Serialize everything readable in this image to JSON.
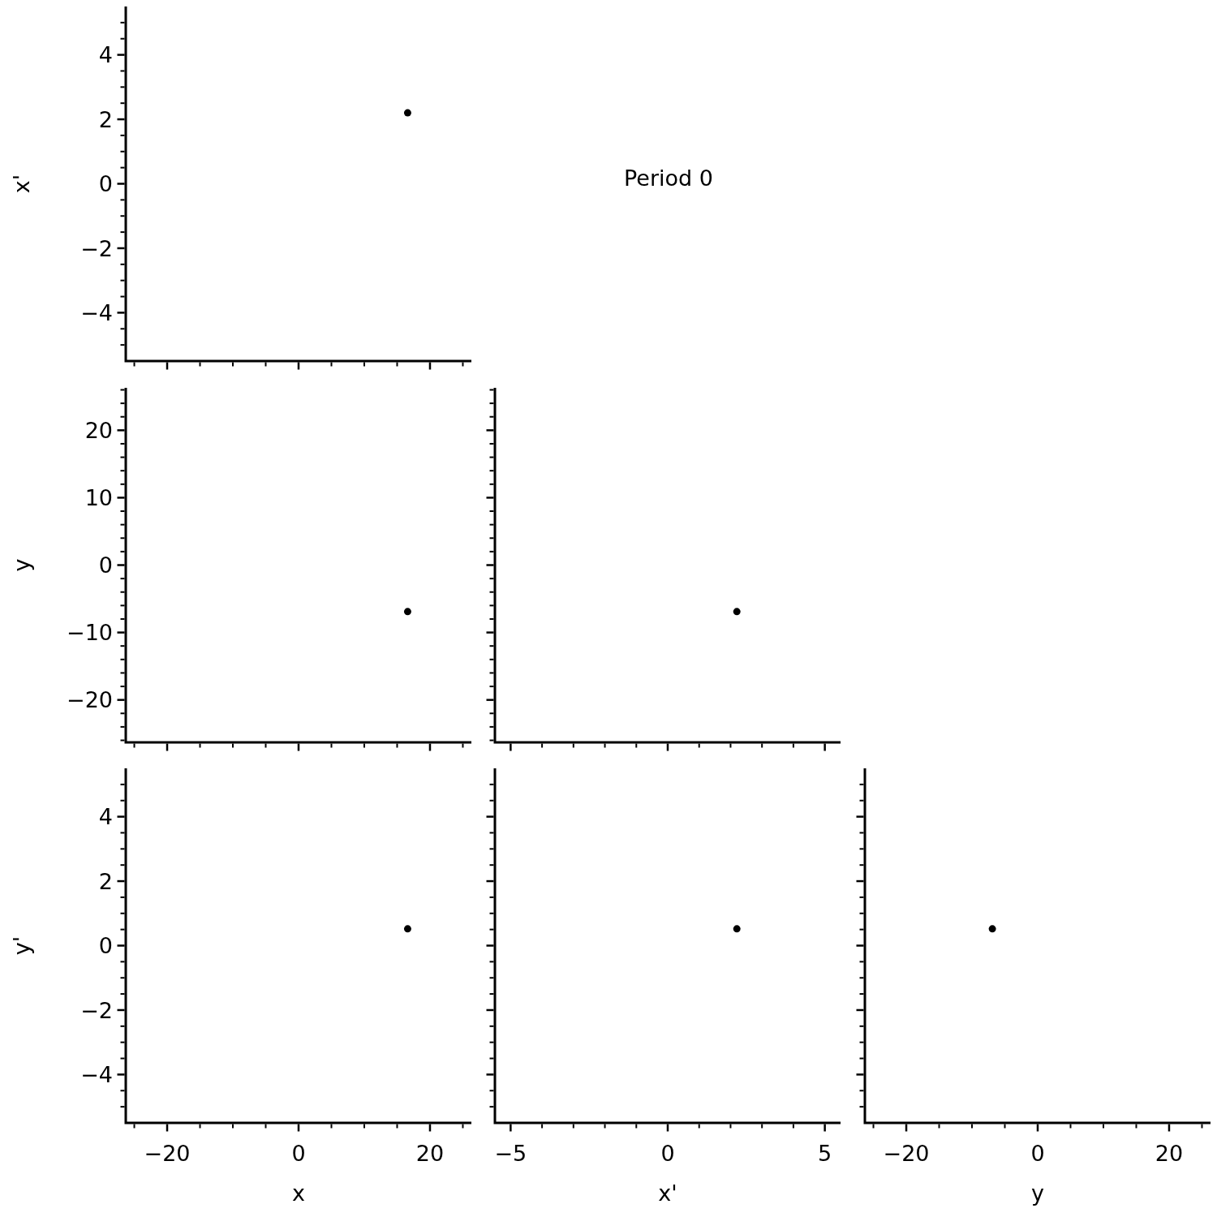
{
  "chart_data": [
    {
      "type": "scatter",
      "x": [
        16.6
      ],
      "values": [
        2.2
      ],
      "color": "#000000",
      "marker": "circle",
      "ylabel": "x'",
      "tick_labels": "y",
      "xlim": [
        -26.3,
        26.3
      ],
      "ylim": [
        -5.5,
        5.5
      ],
      "xticks": [
        {
          "value": -25,
          "label": null
        },
        -20,
        {
          "value": -15,
          "label": null
        },
        {
          "value": -10,
          "label": null
        },
        {
          "value": -5,
          "label": null
        },
        0,
        {
          "value": 5,
          "label": null
        },
        {
          "value": 10,
          "label": null
        },
        {
          "value": 15,
          "label": null
        },
        20,
        {
          "value": 25,
          "label": null
        }
      ],
      "yticks": [
        {
          "value": -5,
          "label": null
        },
        {
          "value": -4.5,
          "label": null
        },
        -4,
        {
          "value": -3.5,
          "label": null
        },
        {
          "value": -3,
          "label": null
        },
        {
          "value": -2.5,
          "label": null
        },
        -2,
        {
          "value": -1.5,
          "label": null
        },
        {
          "value": -1,
          "label": null
        },
        {
          "value": -0.5,
          "label": null
        },
        0,
        {
          "value": 0.5,
          "label": null
        },
        {
          "value": 1,
          "label": null
        },
        {
          "value": 1.5,
          "label": null
        },
        2,
        {
          "value": 2.5,
          "label": null
        },
        {
          "value": 3,
          "label": null
        },
        {
          "value": 3.5,
          "label": null
        },
        4,
        {
          "value": 4.5,
          "label": null
        },
        {
          "value": 5,
          "label": null
        }
      ]
    },
    {
      "type": "other",
      "title": "Period 0"
    },
    {
      "type": "scatter",
      "x": [
        16.6
      ],
      "values": [
        -6.9
      ],
      "color": "#000000",
      "marker": "circle",
      "ylabel": "y",
      "tick_labels": "y",
      "xlim": [
        -26.3,
        26.3
      ],
      "ylim": [
        -26.3,
        26.3
      ],
      "xticks": [
        {
          "value": -25,
          "label": null
        },
        -20,
        {
          "value": -15,
          "label": null
        },
        {
          "value": -10,
          "label": null
        },
        {
          "value": -5,
          "label": null
        },
        0,
        {
          "value": 5,
          "label": null
        },
        {
          "value": 10,
          "label": null
        },
        {
          "value": 15,
          "label": null
        },
        20,
        {
          "value": 25,
          "label": null
        }
      ],
      "yticks": [
        {
          "value": -26,
          "label": null
        },
        {
          "value": -24,
          "label": null
        },
        {
          "value": -22,
          "label": null
        },
        -20,
        {
          "value": -18,
          "label": null
        },
        {
          "value": -16,
          "label": null
        },
        {
          "value": -14,
          "label": null
        },
        {
          "value": -12,
          "label": null
        },
        -10,
        {
          "value": -8,
          "label": null
        },
        {
          "value": -6,
          "label": null
        },
        {
          "value": -4,
          "label": null
        },
        {
          "value": -2,
          "label": null
        },
        0,
        {
          "value": 2,
          "label": null
        },
        {
          "value": 4,
          "label": null
        },
        {
          "value": 6,
          "label": null
        },
        {
          "value": 8,
          "label": null
        },
        10,
        {
          "value": 12,
          "label": null
        },
        {
          "value": 14,
          "label": null
        },
        {
          "value": 16,
          "label": null
        },
        {
          "value": 18,
          "label": null
        },
        20,
        {
          "value": 22,
          "label": null
        },
        {
          "value": 24,
          "label": null
        },
        {
          "value": 26,
          "label": null
        }
      ]
    },
    {
      "type": "scatter",
      "x": [
        2.2
      ],
      "values": [
        -6.9
      ],
      "color": "#000000",
      "marker": "circle",
      "tick_labels": false,
      "xlim": [
        -5.5,
        5.5
      ],
      "ylim": [
        -26.3,
        26.3
      ],
      "xticks": [
        -5,
        {
          "value": -4,
          "label": null
        },
        {
          "value": -3,
          "label": null
        },
        {
          "value": -2,
          "label": null
        },
        {
          "value": -1,
          "label": null
        },
        0,
        {
          "value": 1,
          "label": null
        },
        {
          "value": 2,
          "label": null
        },
        {
          "value": 3,
          "label": null
        },
        {
          "value": 4,
          "label": null
        },
        5
      ],
      "yticks": [
        {
          "value": -26,
          "label": null
        },
        {
          "value": -24,
          "label": null
        },
        {
          "value": -22,
          "label": null
        },
        -20,
        {
          "value": -18,
          "label": null
        },
        {
          "value": -16,
          "label": null
        },
        {
          "value": -14,
          "label": null
        },
        {
          "value": -12,
          "label": null
        },
        -10,
        {
          "value": -8,
          "label": null
        },
        {
          "value": -6,
          "label": null
        },
        {
          "value": -4,
          "label": null
        },
        {
          "value": -2,
          "label": null
        },
        0,
        {
          "value": 2,
          "label": null
        },
        {
          "value": 4,
          "label": null
        },
        {
          "value": 6,
          "label": null
        },
        {
          "value": 8,
          "label": null
        },
        10,
        {
          "value": 12,
          "label": null
        },
        {
          "value": 14,
          "label": null
        },
        {
          "value": 16,
          "label": null
        },
        {
          "value": 18,
          "label": null
        },
        20,
        {
          "value": 22,
          "label": null
        },
        {
          "value": 24,
          "label": null
        },
        {
          "value": 26,
          "label": null
        }
      ]
    },
    {
      "type": "scatter",
      "x": [
        16.6
      ],
      "values": [
        0.52
      ],
      "color": "#000000",
      "marker": "circle",
      "xlabel": "x",
      "ylabel": "y'",
      "xlim": [
        -26.3,
        26.3
      ],
      "ylim": [
        -5.5,
        5.5
      ],
      "xticks": [
        {
          "value": -25,
          "label": null
        },
        -20,
        {
          "value": -15,
          "label": null
        },
        {
          "value": -10,
          "label": null
        },
        {
          "value": -5,
          "label": null
        },
        0,
        {
          "value": 5,
          "label": null
        },
        {
          "value": 10,
          "label": null
        },
        {
          "value": 15,
          "label": null
        },
        20,
        {
          "value": 25,
          "label": null
        }
      ],
      "yticks": [
        {
          "value": -5,
          "label": null
        },
        {
          "value": -4.5,
          "label": null
        },
        -4,
        {
          "value": -3.5,
          "label": null
        },
        {
          "value": -3,
          "label": null
        },
        {
          "value": -2.5,
          "label": null
        },
        -2,
        {
          "value": -1.5,
          "label": null
        },
        {
          "value": -1,
          "label": null
        },
        {
          "value": -0.5,
          "label": null
        },
        0,
        {
          "value": 0.5,
          "label": null
        },
        {
          "value": 1,
          "label": null
        },
        {
          "value": 1.5,
          "label": null
        },
        2,
        {
          "value": 2.5,
          "label": null
        },
        {
          "value": 3,
          "label": null
        },
        {
          "value": 3.5,
          "label": null
        },
        4,
        {
          "value": 4.5,
          "label": null
        },
        {
          "value": 5,
          "label": null
        }
      ]
    },
    {
      "type": "scatter",
      "x": [
        2.2
      ],
      "values": [
        0.52
      ],
      "color": "#000000",
      "marker": "circle",
      "xlabel": "x'",
      "tick_labels": "x",
      "xlim": [
        -5.5,
        5.5
      ],
      "ylim": [
        -5.5,
        5.5
      ],
      "xticks": [
        -5,
        {
          "value": -4,
          "label": null
        },
        {
          "value": -3,
          "label": null
        },
        {
          "value": -2,
          "label": null
        },
        {
          "value": -1,
          "label": null
        },
        0,
        {
          "value": 1,
          "label": null
        },
        {
          "value": 2,
          "label": null
        },
        {
          "value": 3,
          "label": null
        },
        {
          "value": 4,
          "label": null
        },
        5
      ],
      "yticks": [
        {
          "value": -5,
          "label": null
        },
        {
          "value": -4.5,
          "label": null
        },
        -4,
        {
          "value": -3.5,
          "label": null
        },
        {
          "value": -3,
          "label": null
        },
        {
          "value": -2.5,
          "label": null
        },
        -2,
        {
          "value": -1.5,
          "label": null
        },
        {
          "value": -1,
          "label": null
        },
        {
          "value": -0.5,
          "label": null
        },
        0,
        {
          "value": 0.5,
          "label": null
        },
        {
          "value": 1,
          "label": null
        },
        {
          "value": 1.5,
          "label": null
        },
        2,
        {
          "value": 2.5,
          "label": null
        },
        {
          "value": 3,
          "label": null
        },
        {
          "value": 3.5,
          "label": null
        },
        4,
        {
          "value": 4.5,
          "label": null
        },
        {
          "value": 5,
          "label": null
        }
      ]
    },
    {
      "type": "scatter",
      "x": [
        -6.9
      ],
      "values": [
        0.52
      ],
      "color": "#000000",
      "marker": "circle",
      "xlabel": "y",
      "tick_labels": "x",
      "xlim": [
        -26.3,
        26.3
      ],
      "ylim": [
        -5.5,
        5.5
      ],
      "xticks": [
        {
          "value": -25,
          "label": null
        },
        -20,
        {
          "value": -15,
          "label": null
        },
        {
          "value": -10,
          "label": null
        },
        {
          "value": -5,
          "label": null
        },
        0,
        {
          "value": 5,
          "label": null
        },
        {
          "value": 10,
          "label": null
        },
        {
          "value": 15,
          "label": null
        },
        20,
        {
          "value": 25,
          "label": null
        }
      ],
      "yticks": [
        {
          "value": -5,
          "label": null
        },
        {
          "value": -4.5,
          "label": null
        },
        -4,
        {
          "value": -3.5,
          "label": null
        },
        {
          "value": -3,
          "label": null
        },
        {
          "value": -2.5,
          "label": null
        },
        -2,
        {
          "value": -1.5,
          "label": null
        },
        {
          "value": -1,
          "label": null
        },
        {
          "value": -0.5,
          "label": null
        },
        0,
        {
          "value": 0.5,
          "label": null
        },
        {
          "value": 1,
          "label": null
        },
        {
          "value": 1.5,
          "label": null
        },
        2,
        {
          "value": 2.5,
          "label": null
        },
        {
          "value": 3,
          "label": null
        },
        {
          "value": 3.5,
          "label": null
        },
        4,
        {
          "value": 4.5,
          "label": null
        },
        {
          "value": 5,
          "label": null
        }
      ]
    }
  ]
}
